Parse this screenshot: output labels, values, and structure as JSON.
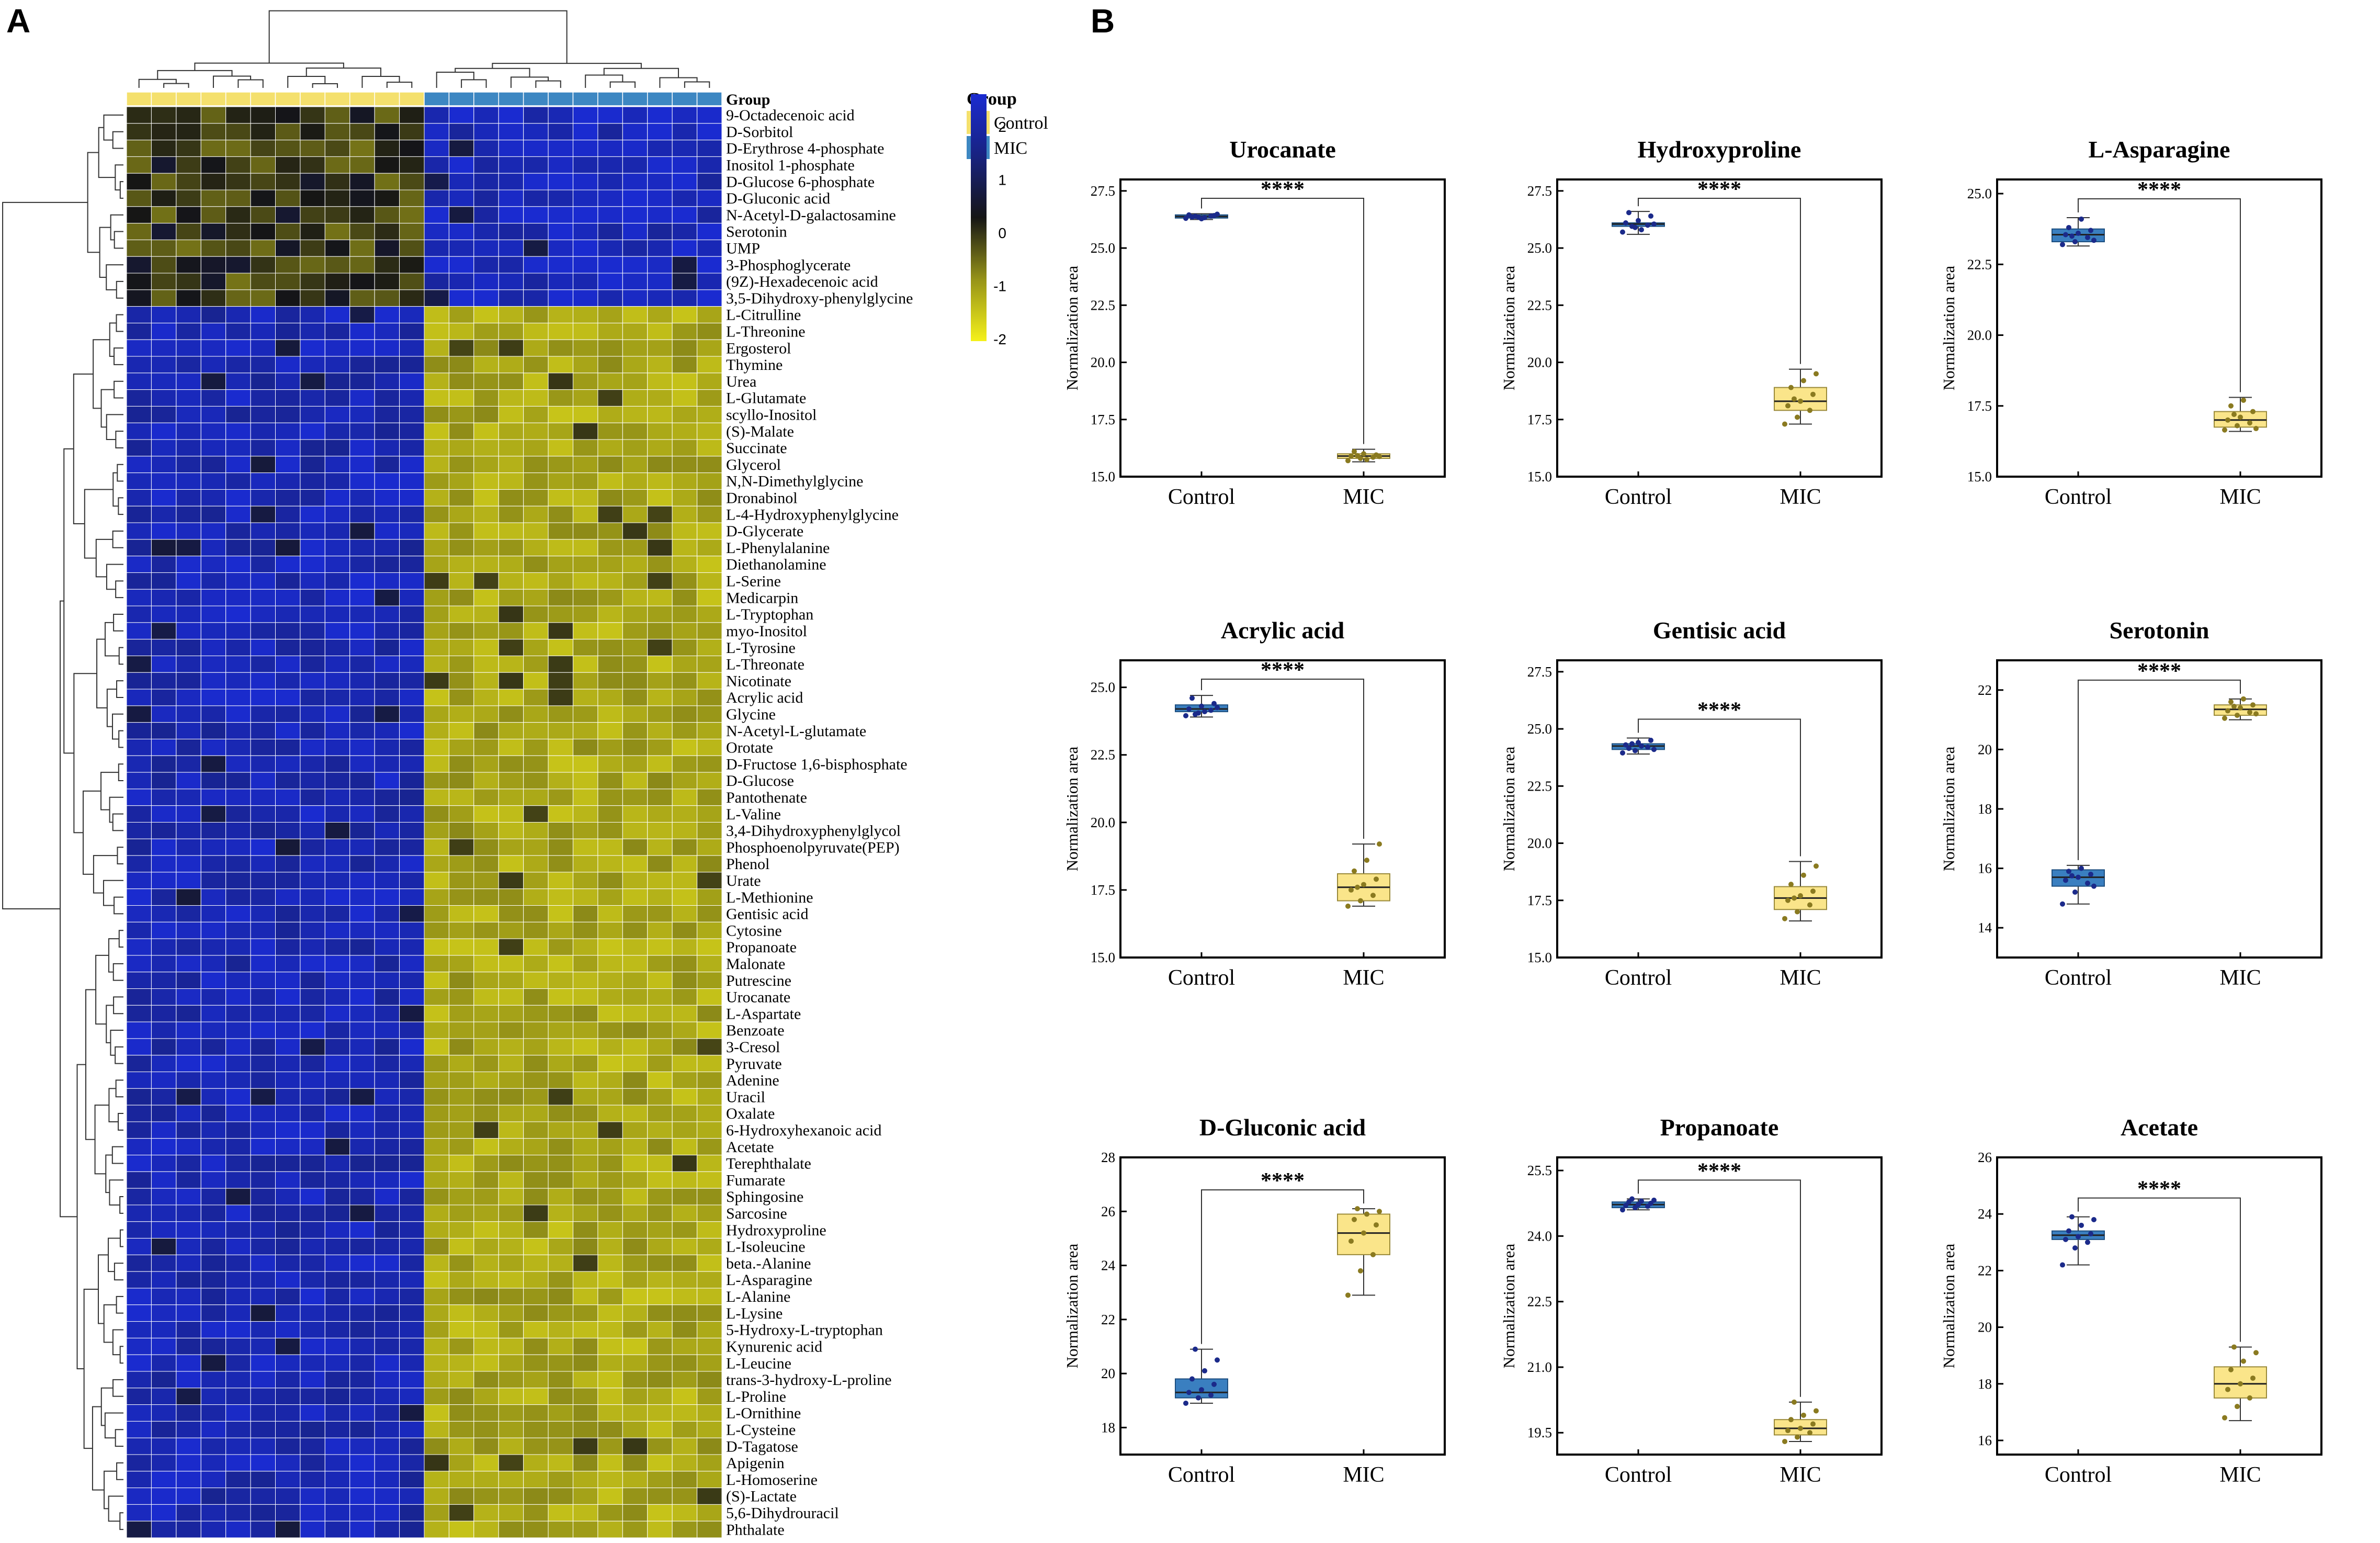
{
  "panel_labels": {
    "a": "A",
    "b": "B"
  },
  "colors": {
    "control": "#f4e06d",
    "mic": "#3d87c2",
    "heat_high": "#1a2bd0",
    "heat_mid": "#151515",
    "heat_low": "#f5f11a",
    "control_box": "#3a7fc0",
    "mic_box": "#fae58a",
    "control_dot": "#1b2a8a",
    "mic_dot": "#8a7a20"
  },
  "legend": {
    "colorbar_ticks": [
      "2",
      "1",
      "0",
      "-1",
      "-2"
    ],
    "group_title": "Group",
    "groups": [
      "Control",
      "MIC"
    ]
  },
  "chart_data": [
    {
      "type": "heatmap",
      "column_annotation_label": "Group",
      "columns": {
        "groups": [
          "Control",
          "Control",
          "Control",
          "Control",
          "Control",
          "Control",
          "Control",
          "Control",
          "Control",
          "Control",
          "Control",
          "Control",
          "MIC",
          "MIC",
          "MIC",
          "MIC",
          "MIC",
          "MIC",
          "MIC",
          "MIC",
          "MIC",
          "MIC",
          "MIC",
          "MIC"
        ]
      },
      "value_range": [
        -2,
        2
      ],
      "rows": [
        {
          "label": "9-Octadecenoic acid",
          "cluster": "up-in-MIC"
        },
        {
          "label": "D-Sorbitol",
          "cluster": "up-in-MIC"
        },
        {
          "label": "D-Erythrose 4-phosphate",
          "cluster": "up-in-MIC"
        },
        {
          "label": "Inositol 1-phosphate",
          "cluster": "up-in-MIC"
        },
        {
          "label": "D-Glucose 6-phosphate",
          "cluster": "up-in-MIC"
        },
        {
          "label": "D-Gluconic acid",
          "cluster": "up-in-MIC"
        },
        {
          "label": "N-Acetyl-D-galactosamine",
          "cluster": "up-in-MIC"
        },
        {
          "label": "Serotonin",
          "cluster": "up-in-MIC"
        },
        {
          "label": "UMP",
          "cluster": "up-in-MIC"
        },
        {
          "label": "3-Phosphoglycerate",
          "cluster": "up-in-MIC"
        },
        {
          "label": "(9Z)-Hexadecenoic acid",
          "cluster": "up-in-MIC"
        },
        {
          "label": "3,5-Dihydroxy-phenylglycine",
          "cluster": "up-in-MIC"
        },
        {
          "label": "L-Citrulline",
          "cluster": "down-in-MIC"
        },
        {
          "label": "L-Threonine",
          "cluster": "down-in-MIC"
        },
        {
          "label": "Ergosterol",
          "cluster": "down-in-MIC"
        },
        {
          "label": "Thymine",
          "cluster": "down-in-MIC"
        },
        {
          "label": "Urea",
          "cluster": "down-in-MIC"
        },
        {
          "label": "L-Glutamate",
          "cluster": "down-in-MIC"
        },
        {
          "label": "scyllo-Inositol",
          "cluster": "down-in-MIC"
        },
        {
          "label": "(S)-Malate",
          "cluster": "down-in-MIC"
        },
        {
          "label": "Succinate",
          "cluster": "down-in-MIC"
        },
        {
          "label": "Glycerol",
          "cluster": "down-in-MIC"
        },
        {
          "label": "N,N-Dimethylglycine",
          "cluster": "down-in-MIC"
        },
        {
          "label": "Dronabinol",
          "cluster": "down-in-MIC"
        },
        {
          "label": "L-4-Hydroxyphenylglycine",
          "cluster": "down-in-MIC"
        },
        {
          "label": "D-Glycerate",
          "cluster": "down-in-MIC"
        },
        {
          "label": "L-Phenylalanine",
          "cluster": "down-in-MIC"
        },
        {
          "label": "Diethanolamine",
          "cluster": "down-in-MIC"
        },
        {
          "label": "L-Serine",
          "cluster": "down-in-MIC"
        },
        {
          "label": "Medicarpin",
          "cluster": "down-in-MIC"
        },
        {
          "label": "L-Tryptophan",
          "cluster": "down-in-MIC"
        },
        {
          "label": "myo-Inositol",
          "cluster": "down-in-MIC"
        },
        {
          "label": "L-Tyrosine",
          "cluster": "down-in-MIC"
        },
        {
          "label": "L-Threonate",
          "cluster": "down-in-MIC"
        },
        {
          "label": "Nicotinate",
          "cluster": "down-in-MIC"
        },
        {
          "label": "Acrylic acid",
          "cluster": "down-in-MIC"
        },
        {
          "label": "Glycine",
          "cluster": "down-in-MIC"
        },
        {
          "label": "N-Acetyl-L-glutamate",
          "cluster": "down-in-MIC"
        },
        {
          "label": "Orotate",
          "cluster": "down-in-MIC"
        },
        {
          "label": "D-Fructose 1,6-bisphosphate",
          "cluster": "down-in-MIC"
        },
        {
          "label": "D-Glucose",
          "cluster": "down-in-MIC"
        },
        {
          "label": "Pantothenate",
          "cluster": "down-in-MIC"
        },
        {
          "label": "L-Valine",
          "cluster": "down-in-MIC"
        },
        {
          "label": "3,4-Dihydroxyphenylglycol",
          "cluster": "down-in-MIC"
        },
        {
          "label": "Phosphoenolpyruvate(PEP)",
          "cluster": "down-in-MIC"
        },
        {
          "label": "Phenol",
          "cluster": "down-in-MIC"
        },
        {
          "label": "Urate",
          "cluster": "down-in-MIC"
        },
        {
          "label": "L-Methionine",
          "cluster": "down-in-MIC"
        },
        {
          "label": "Gentisic acid",
          "cluster": "down-in-MIC"
        },
        {
          "label": "Cytosine",
          "cluster": "down-in-MIC"
        },
        {
          "label": "Propanoate",
          "cluster": "down-in-MIC"
        },
        {
          "label": "Malonate",
          "cluster": "down-in-MIC"
        },
        {
          "label": "Putrescine",
          "cluster": "down-in-MIC"
        },
        {
          "label": "Urocanate",
          "cluster": "down-in-MIC"
        },
        {
          "label": "L-Aspartate",
          "cluster": "down-in-MIC"
        },
        {
          "label": "Benzoate",
          "cluster": "down-in-MIC"
        },
        {
          "label": "3-Cresol",
          "cluster": "down-in-MIC"
        },
        {
          "label": "Pyruvate",
          "cluster": "down-in-MIC"
        },
        {
          "label": "Adenine",
          "cluster": "down-in-MIC"
        },
        {
          "label": "Uracil",
          "cluster": "down-in-MIC"
        },
        {
          "label": "Oxalate",
          "cluster": "down-in-MIC"
        },
        {
          "label": "6-Hydroxyhexanoic acid",
          "cluster": "down-in-MIC"
        },
        {
          "label": "Acetate",
          "cluster": "down-in-MIC"
        },
        {
          "label": "Terephthalate",
          "cluster": "down-in-MIC"
        },
        {
          "label": "Fumarate",
          "cluster": "down-in-MIC"
        },
        {
          "label": "Sphingosine",
          "cluster": "down-in-MIC"
        },
        {
          "label": "Sarcosine",
          "cluster": "down-in-MIC"
        },
        {
          "label": "Hydroxyproline",
          "cluster": "down-in-MIC"
        },
        {
          "label": "L-Isoleucine",
          "cluster": "down-in-MIC"
        },
        {
          "label": "beta.-Alanine",
          "cluster": "down-in-MIC"
        },
        {
          "label": "L-Asparagine",
          "cluster": "down-in-MIC"
        },
        {
          "label": "L-Alanine",
          "cluster": "down-in-MIC"
        },
        {
          "label": "L-Lysine",
          "cluster": "down-in-MIC"
        },
        {
          "label": "5-Hydroxy-L-tryptophan",
          "cluster": "down-in-MIC"
        },
        {
          "label": "Kynurenic acid",
          "cluster": "down-in-MIC"
        },
        {
          "label": "L-Leucine",
          "cluster": "down-in-MIC"
        },
        {
          "label": "trans-3-hydroxy-L-proline",
          "cluster": "down-in-MIC"
        },
        {
          "label": "L-Proline",
          "cluster": "down-in-MIC"
        },
        {
          "label": "L-Ornithine",
          "cluster": "down-in-MIC"
        },
        {
          "label": "L-Cysteine",
          "cluster": "down-in-MIC"
        },
        {
          "label": "D-Tagatose",
          "cluster": "down-in-MIC"
        },
        {
          "label": "Apigenin",
          "cluster": "down-in-MIC"
        },
        {
          "label": "L-Homoserine",
          "cluster": "down-in-MIC"
        },
        {
          "label": "(S)-Lactate",
          "cluster": "down-in-MIC"
        },
        {
          "label": "5,6-Dihydrouracil",
          "cluster": "down-in-MIC"
        },
        {
          "label": "Phthalate",
          "cluster": "down-in-MIC"
        }
      ]
    },
    {
      "type": "box",
      "title": "Urocanate",
      "ylabel": "Normalization area",
      "categories": [
        "Control",
        "MIC"
      ],
      "ylim": [
        15.0,
        28.0
      ],
      "yticks": [
        "15.0",
        "17.5",
        "20.0",
        "22.5",
        "25.0",
        "27.5"
      ],
      "significance": "****",
      "boxes": [
        {
          "min": 26.25,
          "q1": 26.32,
          "median": 26.38,
          "q3": 26.45,
          "max": 26.5
        },
        {
          "min": 15.65,
          "q1": 15.8,
          "median": 15.9,
          "q3": 16.0,
          "max": 16.2
        }
      ],
      "points": [
        [
          26.3,
          26.35,
          26.4,
          26.45,
          26.28,
          26.42,
          26.36,
          26.33,
          26.48,
          26.39
        ],
        [
          15.7,
          15.8,
          15.85,
          15.9,
          16.0,
          15.95,
          16.1,
          15.75,
          15.88,
          15.92
        ]
      ]
    },
    {
      "type": "box",
      "title": "Hydroxyproline",
      "ylabel": "Normalization area",
      "categories": [
        "Control",
        "MIC"
      ],
      "ylim": [
        15.0,
        28.0
      ],
      "yticks": [
        "15.0",
        "17.5",
        "20.0",
        "22.5",
        "25.0",
        "27.5"
      ],
      "significance": "****",
      "boxes": [
        {
          "min": 25.6,
          "q1": 25.95,
          "median": 26.05,
          "q3": 26.1,
          "max": 26.6
        },
        {
          "min": 17.3,
          "q1": 17.9,
          "median": 18.3,
          "q3": 18.9,
          "max": 19.7
        }
      ],
      "points": [
        [
          25.7,
          25.9,
          26.0,
          26.1,
          26.2,
          26.4,
          26.55,
          25.8,
          26.05,
          25.95
        ],
        [
          17.3,
          17.6,
          17.9,
          18.1,
          18.3,
          18.6,
          18.9,
          19.2,
          19.5,
          18.4
        ]
      ]
    },
    {
      "type": "box",
      "title": "L-Asparagine",
      "ylabel": "Normalization area",
      "categories": [
        "Control",
        "MIC"
      ],
      "ylim": [
        15.0,
        25.5
      ],
      "yticks": [
        "15.0",
        "17.5",
        "20.0",
        "22.5",
        "25.0"
      ],
      "significance": "****",
      "boxes": [
        {
          "min": 23.15,
          "q1": 23.3,
          "median": 23.55,
          "q3": 23.75,
          "max": 24.15
        },
        {
          "min": 16.6,
          "q1": 16.75,
          "median": 17.0,
          "q3": 17.3,
          "max": 17.8
        }
      ],
      "points": [
        [
          23.2,
          23.3,
          23.45,
          23.55,
          23.6,
          23.7,
          23.8,
          24.1,
          23.35,
          23.5
        ],
        [
          16.65,
          16.8,
          16.9,
          17.0,
          17.1,
          17.3,
          17.5,
          17.7,
          16.7,
          17.2
        ]
      ]
    },
    {
      "type": "box",
      "title": "Acrylic acid",
      "ylabel": "Normalization area",
      "categories": [
        "Control",
        "MIC"
      ],
      "ylim": [
        15.0,
        26.0
      ],
      "yticks": [
        "15.0",
        "17.5",
        "20.0",
        "22.5",
        "25.0"
      ],
      "significance": "****",
      "boxes": [
        {
          "min": 23.9,
          "q1": 24.1,
          "median": 24.2,
          "q3": 24.35,
          "max": 24.7
        },
        {
          "min": 16.9,
          "q1": 17.1,
          "median": 17.6,
          "q3": 18.1,
          "max": 19.2
        }
      ],
      "points": [
        [
          23.95,
          24.05,
          24.15,
          24.2,
          24.3,
          24.4,
          24.6,
          24.1,
          24.25,
          24.0
        ],
        [
          16.9,
          17.1,
          17.3,
          17.5,
          17.7,
          17.9,
          18.2,
          18.6,
          19.2,
          17.6
        ]
      ]
    },
    {
      "type": "box",
      "title": "Gentisic acid",
      "ylabel": "Normalization area",
      "categories": [
        "Control",
        "MIC"
      ],
      "ylim": [
        15.0,
        28.0
      ],
      "yticks": [
        "15.0",
        "17.5",
        "20.0",
        "22.5",
        "25.0",
        "27.5"
      ],
      "significance": "****",
      "boxes": [
        {
          "min": 23.9,
          "q1": 24.1,
          "median": 24.25,
          "q3": 24.35,
          "max": 24.6
        },
        {
          "min": 16.6,
          "q1": 17.1,
          "median": 17.6,
          "q3": 18.1,
          "max": 19.2
        }
      ],
      "points": [
        [
          23.95,
          24.05,
          24.2,
          24.3,
          24.4,
          24.5,
          24.15,
          24.25,
          24.1,
          24.35
        ],
        [
          16.7,
          17.0,
          17.3,
          17.5,
          17.7,
          17.9,
          18.2,
          18.6,
          19.0,
          17.6
        ]
      ]
    },
    {
      "type": "box",
      "title": "Serotonin",
      "ylabel": "Normalization area",
      "categories": [
        "Control",
        "MIC"
      ],
      "ylim": [
        13.0,
        23.0
      ],
      "yticks": [
        "14",
        "16",
        "18",
        "20",
        "22"
      ],
      "significance": "****",
      "boxes": [
        {
          "min": 14.8,
          "q1": 15.4,
          "median": 15.7,
          "q3": 15.95,
          "max": 16.1
        },
        {
          "min": 21.0,
          "q1": 21.15,
          "median": 21.35,
          "q3": 21.5,
          "max": 21.7
        }
      ],
      "points": [
        [
          14.8,
          15.2,
          15.5,
          15.6,
          15.7,
          15.8,
          15.9,
          16.0,
          15.4,
          15.75
        ],
        [
          21.05,
          21.15,
          21.25,
          21.3,
          21.4,
          21.5,
          21.6,
          21.7,
          21.2,
          21.45
        ]
      ]
    },
    {
      "type": "box",
      "title": "D-Gluconic acid",
      "ylabel": "Normalization area",
      "categories": [
        "Control",
        "MIC"
      ],
      "ylim": [
        17.0,
        28.0
      ],
      "yticks": [
        "18",
        "20",
        "22",
        "24",
        "26",
        "28"
      ],
      "significance": "****",
      "boxes": [
        {
          "min": 18.9,
          "q1": 19.1,
          "median": 19.3,
          "q3": 19.8,
          "max": 20.9
        },
        {
          "min": 22.9,
          "q1": 24.4,
          "median": 25.2,
          "q3": 25.9,
          "max": 26.1
        }
      ],
      "points": [
        [
          18.9,
          19.1,
          19.2,
          19.3,
          19.4,
          19.6,
          19.8,
          20.1,
          20.5,
          20.9
        ],
        [
          22.9,
          23.8,
          24.4,
          24.9,
          25.2,
          25.5,
          25.7,
          25.9,
          26.0,
          26.1
        ]
      ]
    },
    {
      "type": "box",
      "title": "Propanoate",
      "ylabel": "Normalization area",
      "categories": [
        "Control",
        "MIC"
      ],
      "ylim": [
        19.0,
        25.8
      ],
      "yticks": [
        "19.5",
        "21.0",
        "22.5",
        "24.0",
        "25.5"
      ],
      "significance": "****",
      "boxes": [
        {
          "min": 24.6,
          "q1": 24.65,
          "median": 24.72,
          "q3": 24.78,
          "max": 24.85
        },
        {
          "min": 19.3,
          "q1": 19.45,
          "median": 19.6,
          "q3": 19.8,
          "max": 20.2
        }
      ],
      "points": [
        [
          24.6,
          24.65,
          24.68,
          24.7,
          24.72,
          24.75,
          24.78,
          24.8,
          24.82,
          24.85
        ],
        [
          19.3,
          19.4,
          19.5,
          19.55,
          19.6,
          19.7,
          19.8,
          19.9,
          20.0,
          20.2
        ]
      ]
    },
    {
      "type": "box",
      "title": "Acetate",
      "ylabel": "Normalization area",
      "categories": [
        "Control",
        "MIC"
      ],
      "ylim": [
        15.5,
        26.0
      ],
      "yticks": [
        "16",
        "18",
        "20",
        "22",
        "24",
        "26"
      ],
      "significance": "****",
      "boxes": [
        {
          "min": 22.2,
          "q1": 23.1,
          "median": 23.25,
          "q3": 23.4,
          "max": 23.9
        },
        {
          "min": 16.7,
          "q1": 17.5,
          "median": 18.0,
          "q3": 18.6,
          "max": 19.3
        }
      ],
      "points": [
        [
          22.2,
          22.8,
          23.0,
          23.1,
          23.2,
          23.3,
          23.4,
          23.6,
          23.8,
          23.9
        ],
        [
          16.8,
          17.2,
          17.5,
          17.8,
          18.0,
          18.2,
          18.5,
          18.8,
          19.1,
          19.3
        ]
      ]
    }
  ]
}
